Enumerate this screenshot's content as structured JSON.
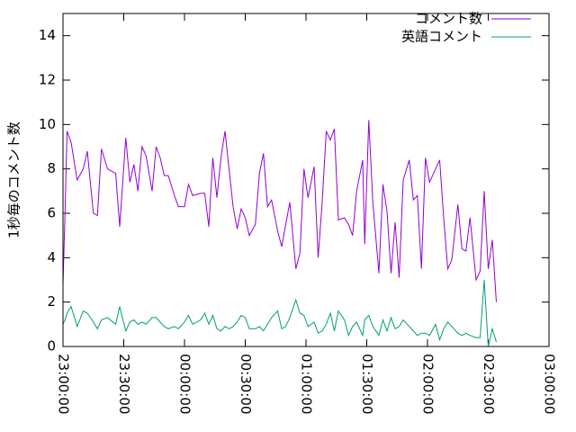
{
  "chart_data": {
    "type": "line",
    "y_label": "1秒毎のコメント数",
    "x": [
      0,
      1,
      2,
      4,
      7,
      10,
      12,
      15,
      17,
      19,
      22,
      26,
      28,
      31,
      33,
      35,
      37,
      39,
      41,
      44,
      46,
      48,
      50,
      52,
      55,
      57,
      60,
      62,
      64,
      68,
      70,
      72,
      74,
      76,
      78,
      80,
      82,
      84,
      86,
      88,
      90,
      92,
      95,
      97,
      99,
      101,
      103,
      106,
      108,
      110,
      112,
      115,
      117,
      119,
      121,
      124,
      126,
      128,
      130,
      132,
      134,
      136,
      139,
      141,
      143,
      145,
      148,
      149,
      151,
      153,
      156,
      158,
      160,
      162,
      164,
      166,
      168,
      171,
      173,
      175,
      177,
      179,
      181,
      184,
      186,
      188,
      190,
      192,
      195,
      197,
      199,
      201,
      204,
      206,
      208,
      210,
      212,
      214
    ],
    "series": [
      {
        "name": "コメント数",
        "color": "#9400d3",
        "values": [
          2.8,
          6,
          9.7,
          9.2,
          7.5,
          8,
          8.8,
          6,
          5.9,
          8.9,
          8,
          7.8,
          5.4,
          9.4,
          7.4,
          8.2,
          7,
          9,
          8.6,
          7,
          9,
          8.5,
          7.7,
          7.7,
          6.8,
          6.3,
          6.3,
          7.3,
          6.8,
          6.9,
          6.9,
          5.4,
          8.5,
          6.7,
          8.5,
          9.7,
          8,
          6.3,
          5.3,
          6.2,
          5.8,
          5,
          5.5,
          7.8,
          8.7,
          6.3,
          6.6,
          5.2,
          4.5,
          5.5,
          6.5,
          3.5,
          4.2,
          8,
          6.7,
          8.1,
          4,
          6.5,
          9.7,
          9.3,
          9.8,
          5.7,
          5.8,
          5.5,
          5,
          7,
          8.4,
          4.6,
          10.2,
          6.5,
          3.3,
          7.3,
          6.1,
          3.3,
          5.6,
          3.1,
          7.5,
          8.4,
          6.6,
          6.8,
          3.5,
          8.5,
          7.4,
          8,
          8.4,
          5.8,
          3.5,
          3.9,
          6.4,
          4.4,
          4.3,
          5.8,
          3,
          3.4,
          7,
          3.5,
          4.8,
          2
        ]
      },
      {
        "name": "英語コメント",
        "color": "#009e73",
        "values": [
          1.0,
          1.2,
          1.5,
          1.8,
          0.9,
          1.6,
          1.5,
          1.1,
          0.8,
          1.2,
          1.3,
          1.0,
          1.8,
          0.7,
          1.1,
          1.2,
          1.0,
          1.1,
          1.0,
          1.3,
          1.3,
          1.1,
          0.9,
          0.8,
          0.9,
          0.8,
          1.1,
          1.4,
          1.0,
          1.2,
          1.5,
          1.0,
          1.4,
          0.8,
          0.7,
          0.9,
          0.8,
          0.9,
          1.1,
          1.4,
          1.3,
          0.8,
          0.8,
          0.9,
          0.7,
          1.0,
          1.3,
          1.6,
          0.8,
          0.9,
          1.3,
          2.1,
          1.5,
          1.4,
          0.9,
          1.1,
          0.6,
          0.7,
          1.0,
          1.5,
          0.7,
          1.6,
          1.2,
          0.5,
          0.9,
          1.1,
          0.5,
          1.2,
          1.4,
          0.9,
          0.5,
          1.2,
          0.7,
          1.3,
          0.8,
          0.9,
          1.2,
          0.9,
          0.7,
          0.5,
          0.6,
          0.6,
          0.5,
          1.0,
          0.3,
          0.8,
          1.1,
          0.9,
          0.6,
          0.5,
          0.6,
          0.5,
          0.4,
          0.4,
          3.0,
          0.0,
          0.8,
          0.2
        ]
      }
    ],
    "xlim": [
      0,
      240
    ],
    "xticks": [
      {
        "value": 0,
        "label": "23:00:00"
      },
      {
        "value": 30,
        "label": "23:30:00"
      },
      {
        "value": 60,
        "label": "00:00:00"
      },
      {
        "value": 90,
        "label": "00:30:00"
      },
      {
        "value": 120,
        "label": "01:00:00"
      },
      {
        "value": 150,
        "label": "01:30:00"
      },
      {
        "value": 180,
        "label": "02:00:00"
      },
      {
        "value": 210,
        "label": "02:30:00"
      },
      {
        "value": 240,
        "label": "03:00:00"
      }
    ],
    "ylim": [
      0,
      15
    ],
    "yticks": [
      0,
      2,
      4,
      6,
      8,
      10,
      12,
      14
    ],
    "legend": "top-right"
  }
}
